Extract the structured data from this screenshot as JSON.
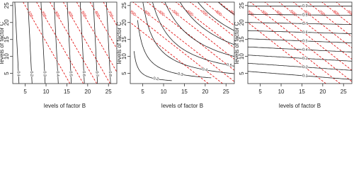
{
  "chart_data": [
    {
      "type": "contour",
      "xlabel": "levels of factor B",
      "ylabel": "levels of factor C",
      "xlim": [
        2,
        27
      ],
      "ylim": [
        2,
        26
      ],
      "xticks": [
        5,
        10,
        15,
        20,
        25
      ],
      "yticks": [
        5,
        10,
        15,
        20,
        25
      ],
      "black_levels": [
        0.1,
        0.2,
        0.3,
        0.4,
        0.5,
        0.6,
        0.7,
        0.8
      ],
      "black_color": "#222222",
      "red_levels": [
        100,
        200,
        300,
        400,
        500,
        600,
        700,
        800
      ],
      "red_color": "#e00000"
    },
    {
      "type": "contour",
      "xlabel": "levels of factor B",
      "ylabel": "levels of factor C",
      "xlim": [
        2,
        27
      ],
      "ylim": [
        2,
        26
      ],
      "xticks": [
        5,
        10,
        15,
        20,
        25
      ],
      "yticks": [
        5,
        10,
        15,
        20,
        25
      ],
      "black_levels": [
        0.2,
        0.3,
        0.4,
        0.5,
        0.6,
        0.7,
        0.8,
        0.9
      ],
      "black_color": "#222222",
      "red_levels": [
        100,
        200,
        300,
        400,
        500,
        600,
        700,
        800,
        900
      ],
      "red_color": "#e00000"
    },
    {
      "type": "contour",
      "xlabel": "levels of factor B",
      "ylabel": "levels of factor C",
      "xlim": [
        2,
        27
      ],
      "ylim": [
        2,
        26
      ],
      "xticks": [
        5,
        10,
        15,
        20,
        25
      ],
      "yticks": [
        5,
        10,
        15,
        20,
        25
      ],
      "black_levels": [
        0.1,
        0.2,
        0.3,
        0.4,
        0.5,
        0.6,
        0.7,
        0.8,
        0.9
      ],
      "black_color": "#222222",
      "red_levels": [
        100,
        200,
        300,
        400,
        500,
        600,
        700,
        800,
        900
      ],
      "red_color": "#e00000"
    }
  ]
}
